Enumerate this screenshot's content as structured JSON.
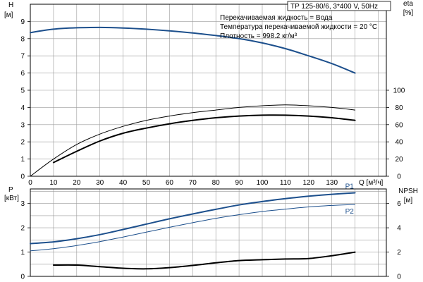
{
  "header": {
    "model": "TP 125-80/6, 3*400 V, 50Hz",
    "info_lines": [
      "Перекачиваемая жидкость = Вода",
      "Температура перекачиваемой жидкости = 20 °C",
      "Плотность = 998.2 кг/м³"
    ]
  },
  "colors": {
    "blue": "#1c4f8c",
    "black": "#000000",
    "grid": "#9a9a9a"
  },
  "chart_data": [
    {
      "type": "line",
      "xlabel": "Q [м³/ч]",
      "xlim": [
        0,
        140
      ],
      "x_ticks": [
        0,
        10,
        20,
        30,
        40,
        50,
        60,
        70,
        80,
        90,
        100,
        110,
        120,
        130
      ],
      "left_axis": {
        "label_top": "H",
        "label_unit": "[м]",
        "ylim": [
          0,
          10
        ],
        "ticks": [
          0,
          1,
          2,
          3,
          4,
          5,
          6,
          7,
          8,
          9
        ]
      },
      "right_axis": {
        "label_top": "eta",
        "label_unit": "[%]",
        "ylim": [
          0,
          200
        ],
        "ticks": [
          0,
          20,
          40,
          60,
          80,
          100
        ]
      },
      "grid": true,
      "series": [
        {
          "axis": "left",
          "color": "#1c4f8c",
          "width": 2,
          "x": [
            0,
            10,
            20,
            30,
            40,
            50,
            60,
            70,
            80,
            90,
            100,
            110,
            120,
            130,
            140
          ],
          "y": [
            8.35,
            8.55,
            8.63,
            8.65,
            8.62,
            8.55,
            8.45,
            8.33,
            8.18,
            8.0,
            7.75,
            7.42,
            7.0,
            6.55,
            6.0
          ]
        },
        {
          "axis": "right",
          "color": "#000000",
          "width": 1,
          "x": [
            0,
            10,
            20,
            30,
            40,
            50,
            60,
            70,
            80,
            90,
            100,
            110,
            120,
            130,
            140
          ],
          "y": [
            0,
            20,
            37,
            49,
            58,
            65,
            70,
            74,
            77,
            80,
            82,
            83,
            82,
            80,
            77
          ]
        },
        {
          "axis": "right",
          "color": "#000000",
          "width": 2,
          "x": [
            10,
            20,
            30,
            40,
            50,
            60,
            70,
            80,
            90,
            100,
            110,
            120,
            130,
            140
          ],
          "y": [
            16,
            29,
            41,
            50,
            56,
            61,
            65,
            68,
            70,
            71,
            71,
            70,
            68,
            65
          ]
        }
      ]
    },
    {
      "type": "line",
      "xlim": [
        0,
        140
      ],
      "left_axis": {
        "label_top": "P",
        "label_unit": "[кВт]",
        "ylim": [
          0,
          3.6
        ],
        "ticks": [
          0,
          1,
          2,
          3
        ]
      },
      "right_axis": {
        "label_top": "NPSH",
        "label_unit": "[м]",
        "ylim": [
          0,
          7.2
        ],
        "ticks": [
          0,
          2,
          4,
          6
        ]
      },
      "grid": true,
      "series": [
        {
          "name": "P1",
          "axis": "left",
          "color": "#1c4f8c",
          "width": 2,
          "x": [
            0,
            10,
            20,
            30,
            40,
            50,
            60,
            70,
            80,
            90,
            100,
            110,
            120,
            130,
            140
          ],
          "y": [
            1.35,
            1.42,
            1.55,
            1.72,
            1.93,
            2.15,
            2.37,
            2.57,
            2.76,
            2.94,
            3.08,
            3.2,
            3.3,
            3.38,
            3.44
          ]
        },
        {
          "name": "P2",
          "axis": "left",
          "color": "#1c4f8c",
          "width": 1,
          "x": [
            0,
            10,
            20,
            30,
            40,
            50,
            60,
            70,
            80,
            90,
            100,
            110,
            120,
            130,
            140
          ],
          "y": [
            1.05,
            1.14,
            1.27,
            1.43,
            1.62,
            1.82,
            2.02,
            2.21,
            2.39,
            2.54,
            2.67,
            2.77,
            2.86,
            2.92,
            2.96
          ]
        },
        {
          "axis": "right",
          "color": "#000000",
          "width": 2,
          "x": [
            10,
            20,
            30,
            40,
            50,
            60,
            70,
            80,
            90,
            100,
            110,
            120,
            130,
            140
          ],
          "y": [
            0.93,
            0.93,
            0.8,
            0.67,
            0.62,
            0.72,
            0.9,
            1.12,
            1.3,
            1.37,
            1.43,
            1.47,
            1.7,
            2.0
          ]
        }
      ]
    }
  ]
}
